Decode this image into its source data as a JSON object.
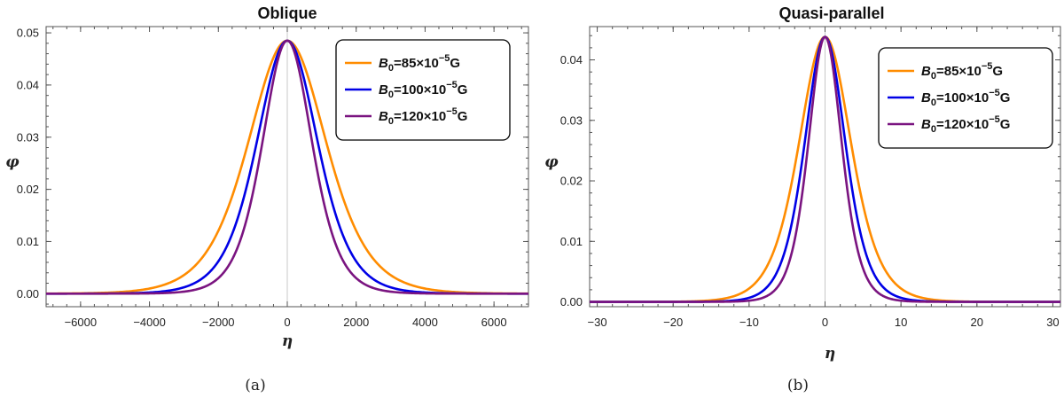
{
  "chart_data": [
    {
      "type": "line",
      "title": "Oblique",
      "xlabel": "η",
      "ylabel": "φ",
      "caption": "(a)",
      "xlim": [
        -7000,
        7000
      ],
      "ylim": [
        -0.0025,
        0.0512
      ],
      "xticks": [
        -6000,
        -4000,
        -2000,
        0,
        2000,
        4000,
        6000
      ],
      "xtick_labels": [
        "−6000",
        "−4000",
        "−2000",
        "0",
        "2000",
        "4000",
        "6000"
      ],
      "yticks": [
        0.0,
        0.01,
        0.02,
        0.03,
        0.04,
        0.05
      ],
      "ytick_labels": [
        "0.00",
        "0.01",
        "0.02",
        "0.03",
        "0.04",
        "0.05"
      ],
      "grid": false,
      "legend_position": "top-right",
      "series": [
        {
          "name": "B0=85×10−5G",
          "legend": {
            "sym": "B",
            "sub": "0",
            "pre": "=85×10",
            "sup": "−5",
            "post": "G"
          },
          "color": "#ff8c00",
          "amplitude": 0.0485,
          "width": 1515
        },
        {
          "name": "B0=100×10−5G",
          "legend": {
            "sym": "B",
            "sub": "0",
            "pre": "=100×10",
            "sup": "−5",
            "post": "G"
          },
          "color": "#0000e6",
          "amplitude": 0.0485,
          "width": 1185
        },
        {
          "name": "B0=120×10−5G",
          "legend": {
            "sym": "B",
            "sub": "0",
            "pre": "=120×10",
            "sup": "−5",
            "post": "G"
          },
          "color": "#7a1480",
          "amplitude": 0.0485,
          "width": 965
        }
      ]
    },
    {
      "type": "line",
      "title": "Quasi-parallel",
      "xlabel": "η",
      "ylabel": "φ",
      "caption": "(b)",
      "xlim": [
        -31,
        31
      ],
      "ylim": [
        -0.0008,
        0.0455
      ],
      "xticks": [
        -30,
        -20,
        -10,
        0,
        10,
        20,
        30
      ],
      "xtick_labels": [
        "−30",
        "−20",
        "−10",
        "0",
        "10",
        "20",
        "30"
      ],
      "yticks": [
        0.0,
        0.01,
        0.02,
        0.03,
        0.04
      ],
      "ytick_labels": [
        "0.00",
        "0.01",
        "0.02",
        "0.03",
        "0.04"
      ],
      "grid": false,
      "legend_position": "top-right",
      "series": [
        {
          "name": "B0=85×10−5G",
          "legend": {
            "sym": "B",
            "sub": "0",
            "pre": "=85×10",
            "sup": "−5",
            "post": "G"
          },
          "color": "#ff8c00",
          "amplitude": 0.0438,
          "width": 4.6
        },
        {
          "name": "B0=100×10−5G",
          "legend": {
            "sym": "B",
            "sub": "0",
            "pre": "=100×10",
            "sup": "−5",
            "post": "G"
          },
          "color": "#0000e6",
          "amplitude": 0.0438,
          "width": 3.6
        },
        {
          "name": "B0=120×10−5G",
          "legend": {
            "sym": "B",
            "sub": "0",
            "pre": "=120×10",
            "sup": "−5",
            "post": "G"
          },
          "color": "#7a1480",
          "amplitude": 0.0438,
          "width": 2.95
        }
      ]
    }
  ]
}
